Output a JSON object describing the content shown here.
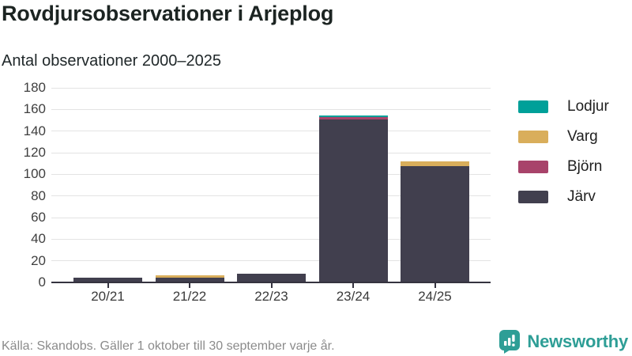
{
  "header": {
    "title": "Rovdjursobservationer i Arjeplog",
    "subtitle": "Antal observationer 2000–2025"
  },
  "chart_data": {
    "type": "bar",
    "stacked": true,
    "title": "Rovdjursobservationer i Arjeplog",
    "subtitle": "Antal observationer 2000–2025",
    "categories": [
      "20/21",
      "21/22",
      "22/23",
      "23/24",
      "24/25"
    ],
    "series": [
      {
        "name": "Järv",
        "color": "#413F4E",
        "values": [
          4,
          4,
          7,
          150,
          107
        ]
      },
      {
        "name": "Björn",
        "color": "#A8436A",
        "values": [
          0,
          0,
          0,
          2,
          0
        ]
      },
      {
        "name": "Varg",
        "color": "#D9AE5B",
        "values": [
          0,
          2,
          0,
          0,
          4
        ]
      },
      {
        "name": "Lodjur",
        "color": "#00A099",
        "values": [
          0,
          0,
          0,
          2,
          0
        ]
      }
    ],
    "legend_order": [
      "Lodjur",
      "Varg",
      "Björn",
      "Järv"
    ],
    "legend_position": "right",
    "y_ticks": [
      0,
      20,
      40,
      60,
      80,
      100,
      120,
      140,
      160,
      180
    ],
    "ylim": [
      0,
      180
    ],
    "xlabel": "",
    "ylabel": "",
    "grid": true
  },
  "footer": {
    "source": "Källa: Skandobs. Gäller 1 oktober till 30 september varje år.",
    "brand": "Newsworthy"
  },
  "colors": {
    "accent_teal": "#2e9e96",
    "grid": "#e3e3e3",
    "axis": "#35333f",
    "text_dark": "#1c2422",
    "text_gray": "#8b8b8b"
  }
}
